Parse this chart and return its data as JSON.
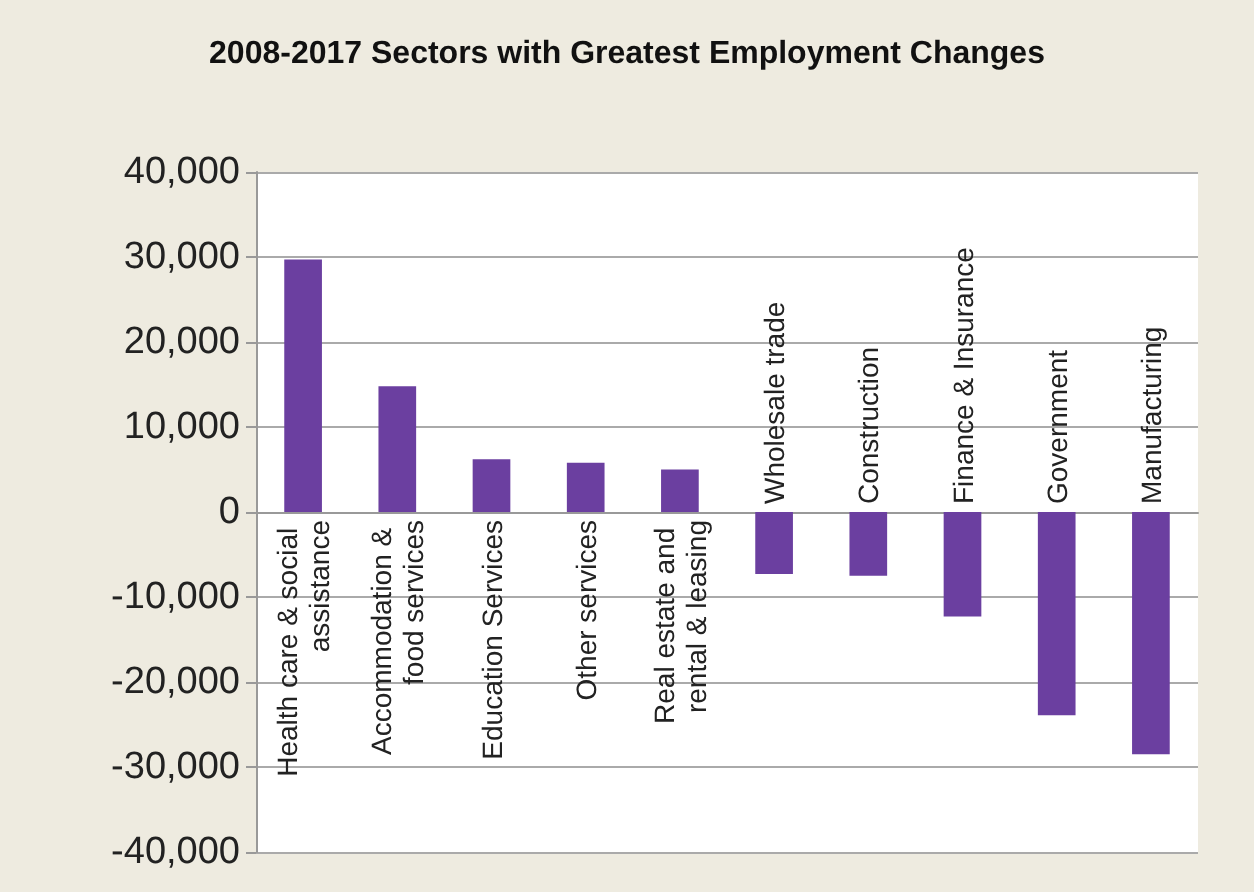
{
  "chart_data": {
    "type": "bar",
    "title": "2008-2017 Sectors with Greatest Employment Changes",
    "categories": [
      "Health care & social assistance",
      "Accommodation & food services",
      "Education Services",
      "Other services",
      "Real estate and rental & leasing",
      "Wholesale trade",
      "Construction",
      "Finance & Insurance",
      "Government",
      "Manufacturing"
    ],
    "values": [
      29700,
      14800,
      6200,
      5800,
      5000,
      -7300,
      -7500,
      -12300,
      -23900,
      -28500
    ],
    "color": "#6b3fa0",
    "ylim": [
      -40000,
      40000
    ],
    "yticks": [
      {
        "value": -40000,
        "label": "-40,000"
      },
      {
        "value": -30000,
        "label": "-30,000"
      },
      {
        "value": -20000,
        "label": "-20,000"
      },
      {
        "value": -10000,
        "label": "-10,000"
      },
      {
        "value": 0,
        "label": "0"
      },
      {
        "value": 10000,
        "label": "10,000"
      },
      {
        "value": 20000,
        "label": "20,000"
      },
      {
        "value": 30000,
        "label": "30,000"
      },
      {
        "value": 40000,
        "label": "40,000"
      }
    ],
    "grid": "y"
  }
}
